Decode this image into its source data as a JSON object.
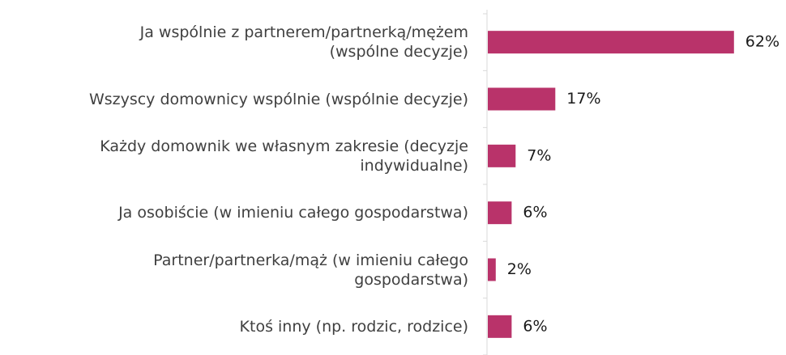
{
  "chart_data": {
    "type": "bar",
    "orientation": "horizontal",
    "categories": [
      "Ja wspólnie z partnerem/partnerką/mężem\n(wspólne decyzje)",
      "Wszyscy domownicy wspólnie (wspólnie decyzje)",
      "Każdy domownik we własnym zakresie (decyzje\nindywidualne)",
      "Ja osobiście (w imieniu całego gospodarstwa)",
      "Partner/partnerka/mąż (w imieniu całego\ngospodarstwa)",
      "Ktoś inny (np. rodzic, rodzice)"
    ],
    "values": [
      62,
      17,
      7,
      6,
      2,
      6
    ],
    "value_labels": [
      "62%",
      "17%",
      "7%",
      "6%",
      "2%",
      "6%"
    ],
    "color": "#b9336a"
  }
}
